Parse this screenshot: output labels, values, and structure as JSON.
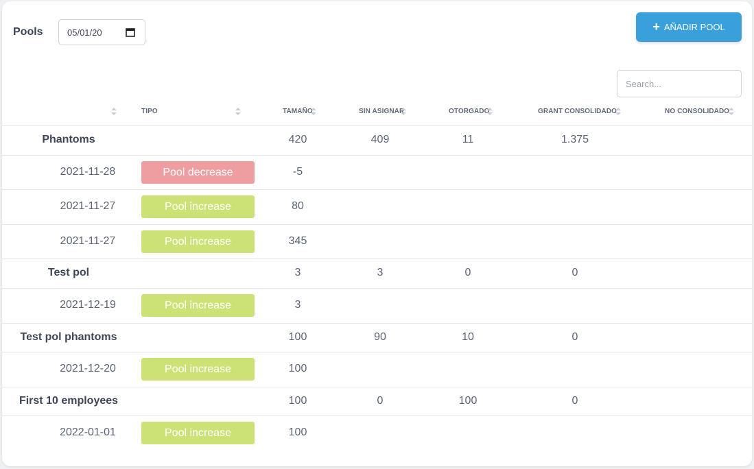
{
  "header": {
    "title": "Pools",
    "date_value": "05/01/20",
    "add_button_label": "AÑADIR POOL",
    "search_placeholder": "Search..."
  },
  "columns": [
    "",
    "TIPO",
    "TAMAÑO",
    "SIN ASIGNAR",
    "OTORGADO",
    "GRANT CONSOLIDADO",
    "NO CONSOLIDADO"
  ],
  "rows": [
    {
      "kind": "pool",
      "name": "Phantoms",
      "size": "420",
      "unassigned": "409",
      "granted": "11",
      "vested": "1.375"
    },
    {
      "kind": "entry",
      "date": "2021-11-28",
      "type": "Pool decrease",
      "size": "-5"
    },
    {
      "kind": "entry",
      "date": "2021-11-27",
      "type": "Pool increase",
      "size": "80"
    },
    {
      "kind": "entry",
      "date": "2021-11-27",
      "type": "Pool increase",
      "size": "345"
    },
    {
      "kind": "pool",
      "name": "Test pol",
      "size": "3",
      "unassigned": "3",
      "granted": "0",
      "vested": "0"
    },
    {
      "kind": "entry",
      "date": "2021-12-19",
      "type": "Pool increase",
      "size": "3"
    },
    {
      "kind": "pool",
      "name": "Test pol phantoms",
      "size": "100",
      "unassigned": "90",
      "granted": "10",
      "vested": "0"
    },
    {
      "kind": "entry",
      "date": "2021-12-20",
      "type": "Pool increase",
      "size": "100"
    },
    {
      "kind": "pool",
      "name": "First 10 employees",
      "size": "100",
      "unassigned": "0",
      "granted": "100",
      "vested": "0"
    },
    {
      "kind": "entry",
      "date": "2022-01-01",
      "type": "Pool increase",
      "size": "100"
    }
  ],
  "colors": {
    "accent": "#3aa0dc",
    "increase": "#cde276",
    "decrease": "#ee9ea0"
  }
}
